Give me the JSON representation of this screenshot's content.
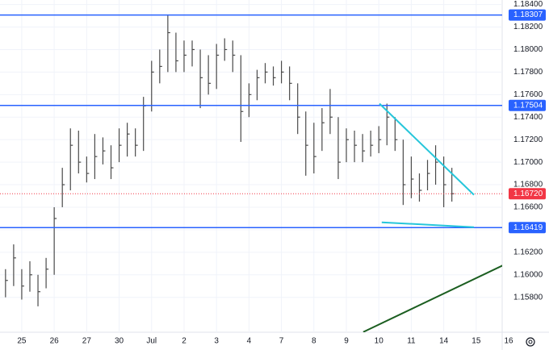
{
  "chart_data": {
    "type": "ohlc",
    "color": "#4a4a4a",
    "x": [
      -0.5,
      -0.25,
      0,
      0.25,
      0.5,
      0.75,
      1,
      1.25,
      1.5,
      1.75,
      2,
      2.25,
      2.5,
      2.75,
      3,
      3.25,
      3.5,
      3.75,
      4,
      4.25,
      4.5,
      4.75,
      5,
      5.25,
      5.5,
      5.75,
      6,
      6.25,
      6.5,
      6.75,
      7,
      7.25,
      7.5,
      7.75,
      8,
      8.25,
      8.5,
      8.75,
      9,
      9.25,
      9.5,
      9.75,
      10,
      10.25,
      10.5,
      10.75,
      11,
      11.25,
      11.5,
      11.75,
      12,
      12.25,
      12.5,
      12.75,
      13,
      13.25
    ],
    "high": [
      1.1605,
      1.1627,
      1.1605,
      1.1612,
      1.16,
      1.1615,
      1.166,
      1.1695,
      1.173,
      1.1728,
      1.1705,
      1.1725,
      1.1722,
      1.1715,
      1.173,
      1.1735,
      1.173,
      1.1758,
      1.179,
      1.18,
      1.1831,
      1.1815,
      1.1808,
      1.1808,
      1.18,
      1.1795,
      1.1805,
      1.181,
      1.1808,
      1.1795,
      1.177,
      1.1782,
      1.1788,
      1.1785,
      1.179,
      1.1785,
      1.177,
      1.1745,
      1.1735,
      1.1748,
      1.1765,
      1.174,
      1.173,
      1.1728,
      1.1725,
      1.1728,
      1.1732,
      1.1752,
      1.174,
      1.172,
      1.1705,
      1.169,
      1.1702,
      1.1715,
      1.1705,
      1.1695
    ],
    "low": [
      1.158,
      1.159,
      1.1578,
      1.1585,
      1.1572,
      1.1588,
      1.16,
      1.166,
      1.1675,
      1.169,
      1.1682,
      1.1685,
      1.1698,
      1.1685,
      1.17,
      1.1705,
      1.1705,
      1.171,
      1.1745,
      1.177,
      1.178,
      1.178,
      1.178,
      1.1785,
      1.1748,
      1.176,
      1.1765,
      1.179,
      1.178,
      1.1718,
      1.174,
      1.1755,
      1.177,
      1.1768,
      1.177,
      1.1755,
      1.1725,
      1.1688,
      1.169,
      1.171,
      1.1725,
      1.1685,
      1.17,
      1.17,
      1.17,
      1.1705,
      1.1708,
      1.1715,
      1.171,
      1.1662,
      1.1668,
      1.1665,
      1.1675,
      1.168,
      1.166,
      1.1665
    ],
    "close": [
      1.1595,
      1.1615,
      1.159,
      1.16,
      1.1585,
      1.1605,
      1.165,
      1.168,
      1.1715,
      1.17,
      1.169,
      1.1705,
      1.171,
      1.1695,
      1.1715,
      1.1725,
      1.1715,
      1.175,
      1.178,
      1.1785,
      1.1815,
      1.179,
      1.1795,
      1.18,
      1.1775,
      1.177,
      1.1795,
      1.18,
      1.1795,
      1.1745,
      1.176,
      1.1775,
      1.178,
      1.1775,
      1.178,
      1.177,
      1.174,
      1.1715,
      1.1705,
      1.1735,
      1.174,
      1.17,
      1.172,
      1.1715,
      1.171,
      1.1715,
      1.172,
      1.174,
      1.172,
      1.168,
      1.1685,
      1.1675,
      1.169,
      1.17,
      1.168,
      1.1672
    ],
    "xlim": [
      -0.67,
      14.8
    ],
    "ylim": [
      1.1549,
      1.1844
    ],
    "xticks": [
      {
        "value": 0,
        "label": "25"
      },
      {
        "value": 1,
        "label": "26"
      },
      {
        "value": 2,
        "label": "27"
      },
      {
        "value": 3,
        "label": "30"
      },
      {
        "value": 4,
        "label": "Jul"
      },
      {
        "value": 5,
        "label": "2"
      },
      {
        "value": 6,
        "label": "3"
      },
      {
        "value": 7,
        "label": "4"
      },
      {
        "value": 8,
        "label": "7"
      },
      {
        "value": 9,
        "label": "8"
      },
      {
        "value": 10,
        "label": "9"
      },
      {
        "value": 11,
        "label": "10"
      },
      {
        "value": 12,
        "label": "11"
      },
      {
        "value": 13,
        "label": "14"
      },
      {
        "value": 14,
        "label": "15"
      },
      {
        "value": 15,
        "label": "16"
      }
    ],
    "yticks": [
      {
        "value": 1.158,
        "label": "1.15800"
      },
      {
        "value": 1.16,
        "label": "1.16000"
      },
      {
        "value": 1.162,
        "label": "1.16200"
      },
      {
        "value": 1.164,
        "label": "1.16400"
      },
      {
        "value": 1.166,
        "label": "1.16600"
      },
      {
        "value": 1.168,
        "label": "1.16800"
      },
      {
        "value": 1.17,
        "label": "1.17000"
      },
      {
        "value": 1.172,
        "label": "1.17200"
      },
      {
        "value": 1.174,
        "label": "1.17400"
      },
      {
        "value": 1.176,
        "label": "1.17600"
      },
      {
        "value": 1.178,
        "label": "1.17800"
      },
      {
        "value": 1.18,
        "label": "1.18000"
      },
      {
        "value": 1.182,
        "label": "1.18200"
      },
      {
        "value": 1.184,
        "label": "1.18400"
      }
    ],
    "grid": true,
    "hlines": [
      {
        "value": 1.18307,
        "label": "1.18307",
        "color": "#2962ff",
        "dashed": false
      },
      {
        "value": 1.17504,
        "label": "1.17504",
        "color": "#2962ff",
        "dashed": false
      },
      {
        "value": 1.1672,
        "label": "1.16720",
        "color": "#f23645",
        "dashed": true
      },
      {
        "value": 1.16419,
        "label": "1.16419",
        "color": "#2962ff",
        "dashed": false
      }
    ],
    "trendlines": [
      {
        "x": [
          11.02,
          13.93
        ],
        "y": [
          1.1752,
          1.1671
        ],
        "color": "#26c6da"
      },
      {
        "x": [
          11.09,
          13.93
        ],
        "y": [
          1.16466,
          1.16423
        ],
        "color": "#26c6da"
      },
      {
        "x": [
          10.52,
          15.05
        ],
        "y": [
          1.15492,
          1.16115
        ],
        "color": "#1b5e20"
      }
    ]
  }
}
